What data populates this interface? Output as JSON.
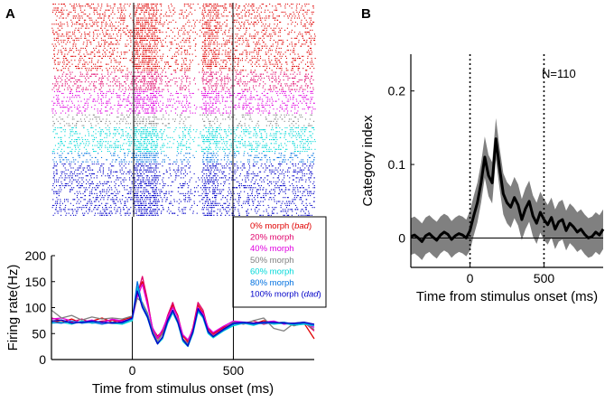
{
  "panel_a": {
    "label": "A",
    "raster_groups": [
      {
        "name": "0% morph",
        "color": "#e00000"
      },
      {
        "name": "20% morph",
        "color": "#e0006a"
      },
      {
        "name": "40% morph",
        "color": "#e000e0"
      },
      {
        "name": "50% morph",
        "color": "#808080"
      },
      {
        "name": "60% morph",
        "color": "#00d8d8"
      },
      {
        "name": "80% morph",
        "color": "#0070e0"
      },
      {
        "name": "100% morph",
        "color": "#0000c8"
      }
    ],
    "legend": [
      {
        "text": "0% morph (",
        "em": "bad",
        "close": ")",
        "color": "#e00000"
      },
      {
        "text": "20% morph",
        "color": "#e0006a"
      },
      {
        "text": "40% morph",
        "color": "#e000e0"
      },
      {
        "text": "50% morph",
        "color": "#808080"
      },
      {
        "text": "60% morph",
        "color": "#00d8d8"
      },
      {
        "text": "80% morph",
        "color": "#0070e0"
      },
      {
        "text": "100% morph (",
        "em": "dad",
        "close": ")",
        "color": "#0000c8"
      }
    ]
  },
  "panel_b": {
    "label": "B",
    "annotation": "N=110"
  },
  "chart_data": [
    {
      "type": "line",
      "panel": "A",
      "xlabel": "Time from stimulus onset (ms)",
      "ylabel": "Firing rate(Hz)",
      "xlim": [
        -400,
        900
      ],
      "ylim": [
        0,
        200
      ],
      "xticks": [
        0,
        500
      ],
      "yticks": [
        0,
        50,
        100,
        150,
        200
      ],
      "vlines": [
        0,
        500
      ],
      "x": [
        -400,
        -350,
        -300,
        -250,
        -200,
        -150,
        -100,
        -50,
        0,
        25,
        50,
        75,
        100,
        125,
        150,
        175,
        200,
        225,
        250,
        275,
        300,
        325,
        350,
        375,
        400,
        450,
        500,
        550,
        600,
        650,
        700,
        750,
        800,
        850,
        900
      ],
      "series": [
        {
          "name": "0% morph",
          "color": "#e00000",
          "values": [
            75,
            72,
            78,
            70,
            74,
            80,
            72,
            76,
            82,
            130,
            150,
            110,
            60,
            45,
            55,
            80,
            105,
            85,
            45,
            35,
            60,
            105,
            90,
            60,
            50,
            62,
            70,
            72,
            68,
            75,
            70,
            72,
            65,
            70,
            40
          ]
        },
        {
          "name": "20% morph",
          "color": "#e0006a",
          "values": [
            80,
            75,
            72,
            78,
            70,
            74,
            76,
            72,
            80,
            125,
            160,
            115,
            58,
            40,
            52,
            85,
            110,
            80,
            40,
            32,
            62,
            110,
            95,
            58,
            48,
            60,
            72,
            70,
            74,
            68,
            72,
            70,
            68,
            72,
            55
          ]
        },
        {
          "name": "40% morph",
          "color": "#e000e0",
          "values": [
            78,
            80,
            74,
            72,
            76,
            70,
            78,
            74,
            78,
            120,
            145,
            105,
            62,
            42,
            58,
            82,
            100,
            82,
            48,
            38,
            58,
            100,
            88,
            62,
            52,
            64,
            74,
            72,
            70,
            72,
            74,
            68,
            70,
            70,
            62
          ]
        },
        {
          "name": "50% morph",
          "color": "#808080",
          "values": [
            95,
            80,
            85,
            76,
            82,
            78,
            80,
            78,
            84,
            118,
            110,
            90,
            55,
            35,
            50,
            75,
            95,
            75,
            40,
            30,
            55,
            95,
            85,
            55,
            45,
            58,
            72,
            68,
            75,
            80,
            60,
            55,
            70,
            72,
            58
          ]
        },
        {
          "name": "60% morph",
          "color": "#00d8d8",
          "values": [
            70,
            72,
            68,
            74,
            70,
            72,
            70,
            68,
            75,
            140,
            100,
            80,
            50,
            30,
            40,
            70,
            90,
            70,
            35,
            25,
            50,
            92,
            80,
            50,
            42,
            55,
            65,
            70,
            66,
            72,
            68,
            70,
            66,
            68,
            65
          ]
        },
        {
          "name": "80% morph",
          "color": "#0070e0",
          "values": [
            72,
            70,
            74,
            70,
            72,
            68,
            72,
            70,
            78,
            150,
            105,
            85,
            52,
            32,
            42,
            72,
            92,
            72,
            38,
            28,
            52,
            95,
            82,
            52,
            44,
            56,
            68,
            70,
            68,
            70,
            70,
            72,
            68,
            70,
            66
          ]
        },
        {
          "name": "100% morph",
          "color": "#0000c8",
          "values": [
            74,
            76,
            70,
            72,
            74,
            72,
            70,
            72,
            80,
            132,
            100,
            82,
            50,
            30,
            44,
            75,
            95,
            72,
            38,
            26,
            54,
            98,
            84,
            54,
            44,
            58,
            70,
            72,
            70,
            72,
            72,
            70,
            70,
            72,
            68
          ]
        }
      ]
    },
    {
      "type": "line",
      "panel": "B",
      "xlabel": "Time from stimulus onset (ms)",
      "ylabel": "Category index",
      "xlim": [
        -400,
        900
      ],
      "ylim": [
        -0.04,
        0.25
      ],
      "xticks": [
        0,
        500
      ],
      "yticks": [
        0,
        0.1,
        0.2
      ],
      "hline": 0,
      "vlines": [
        0,
        500
      ],
      "x": [
        -400,
        -375,
        -350,
        -325,
        -300,
        -275,
        -250,
        -225,
        -200,
        -175,
        -150,
        -125,
        -100,
        -75,
        -50,
        -25,
        0,
        25,
        50,
        75,
        100,
        125,
        150,
        175,
        200,
        225,
        250,
        275,
        300,
        325,
        350,
        375,
        400,
        425,
        450,
        475,
        500,
        525,
        550,
        575,
        600,
        625,
        650,
        675,
        700,
        725,
        750,
        775,
        800,
        825,
        850,
        875,
        900
      ],
      "series": [
        {
          "name": "mean",
          "color": "#000000",
          "values": [
            0.002,
            0.004,
            0.0,
            -0.005,
            0.003,
            0.006,
            0.001,
            -0.003,
            0.004,
            0.008,
            0.005,
            -0.002,
            0.003,
            0.006,
            0.004,
            0.0,
            0.01,
            0.03,
            0.048,
            0.075,
            0.11,
            0.085,
            0.075,
            0.135,
            0.095,
            0.06,
            0.048,
            0.042,
            0.055,
            0.045,
            0.025,
            0.04,
            0.05,
            0.03,
            0.02,
            0.035,
            0.025,
            0.018,
            0.028,
            0.012,
            0.022,
            0.025,
            0.01,
            0.02,
            0.015,
            0.008,
            0.012,
            0.005,
            0.0,
            0.002,
            0.008,
            0.004,
            0.012
          ]
        },
        {
          "name": "error",
          "color": "#808080",
          "values": [
            0.025,
            0.025,
            0.025,
            0.025,
            0.025,
            0.025,
            0.025,
            0.025,
            0.025,
            0.025,
            0.025,
            0.025,
            0.025,
            0.025,
            0.025,
            0.025,
            0.027,
            0.027,
            0.027,
            0.027,
            0.028,
            0.028,
            0.028,
            0.028,
            0.028,
            0.028,
            0.028,
            0.028,
            0.028,
            0.028,
            0.028,
            0.028,
            0.028,
            0.028,
            0.028,
            0.028,
            0.028,
            0.027,
            0.027,
            0.027,
            0.027,
            0.027,
            0.027,
            0.027,
            0.027,
            0.027,
            0.027,
            0.027,
            0.027,
            0.027,
            0.027,
            0.027,
            0.027
          ]
        }
      ]
    }
  ]
}
